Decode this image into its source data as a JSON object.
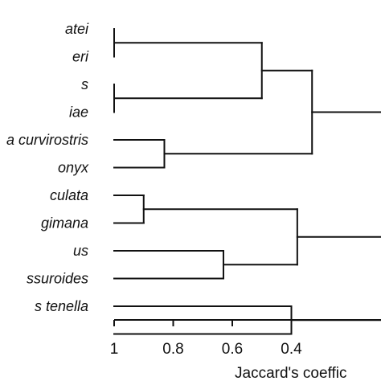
{
  "chart_data": {
    "type": "dendrogram",
    "leaves": [
      "atei",
      "eri",
      "s",
      "iae",
      "a curvirostris",
      "onyx",
      "culata",
      "gimana",
      "us",
      "ssuroides",
      "s tenella",
      ""
    ],
    "merges": [
      {
        "id": "c1",
        "left": "L0",
        "right": "L1",
        "height": 1.0
      },
      {
        "id": "c2",
        "left": "L2",
        "right": "L3",
        "height": 1.0
      },
      {
        "id": "c3",
        "left": "c1",
        "right": "c2",
        "height": 0.5
      },
      {
        "id": "c4",
        "left": "L4",
        "right": "L5",
        "height": 0.83
      },
      {
        "id": "c5",
        "left": "c3",
        "right": "c4",
        "height": 0.33
      },
      {
        "id": "c6",
        "left": "L6",
        "right": "L7",
        "height": 0.9
      },
      {
        "id": "c7",
        "left": "L8",
        "right": "L9",
        "height": 0.63
      },
      {
        "id": "c8",
        "left": "c6",
        "right": "c7",
        "height": 0.38
      },
      {
        "id": "c9",
        "left": "L10",
        "right": "L11",
        "height": 0.4
      }
    ],
    "open_branches": [
      {
        "from": "c5",
        "height": 0.33
      },
      {
        "from": "c8",
        "height": 0.38
      },
      {
        "from": "c9",
        "height": 0.4
      }
    ],
    "x_axis": {
      "ticks": [
        1,
        0.8,
        0.6,
        0.4
      ],
      "tick_labels": [
        "1",
        "0.8",
        "0.6",
        "0.4"
      ],
      "range": [
        1.0,
        0.28
      ],
      "label": "Jaccard's coeffic"
    },
    "colors": {
      "line": "#111111",
      "background": "#ffffff"
    }
  }
}
